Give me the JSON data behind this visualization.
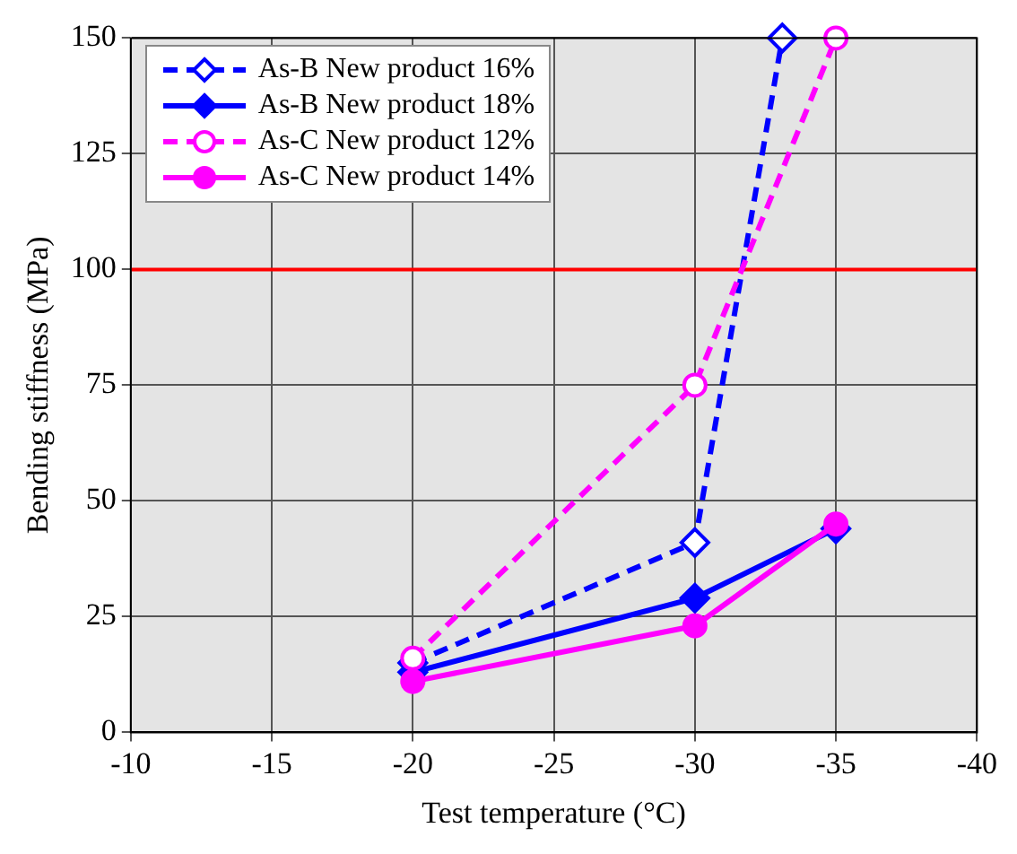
{
  "chart_data": {
    "type": "line",
    "xlabel": "Test temperature (°C)",
    "ylabel": "Bending stiffness (MPa)",
    "xlim": [
      -10,
      -40
    ],
    "xticks": [
      -10,
      -15,
      -20,
      -25,
      -30,
      -35,
      -40
    ],
    "ylim": [
      0,
      150
    ],
    "yticks": [
      0,
      25,
      50,
      75,
      100,
      125,
      150
    ],
    "grid": true,
    "legend": "top left",
    "ref_lines": [
      {
        "axis": "y",
        "value": 100,
        "color": "#ff0000"
      }
    ],
    "series": [
      {
        "name": "As-B New product 16%",
        "color": "#0000ff",
        "x": [
          -20,
          -30,
          -33.1
        ],
        "values": [
          15,
          41,
          150
        ],
        "marker": "diamond",
        "line_style": "dashed"
      },
      {
        "name": "As-B New product 18%",
        "color": "#0000ff",
        "x": [
          -20,
          -30,
          -35
        ],
        "values": [
          13,
          29,
          44
        ],
        "marker": "diamond",
        "line_style": "solid"
      },
      {
        "name": "As-C New product 12%",
        "color": "#ff00ff",
        "x": [
          -20,
          -30,
          -35
        ],
        "values": [
          16,
          75,
          150
        ],
        "marker": "circle",
        "line_style": "dashed"
      },
      {
        "name": "As-C New product 14%",
        "color": "#ff00ff",
        "x": [
          -20,
          -30,
          -35
        ],
        "values": [
          11,
          23,
          45
        ],
        "marker": "circle",
        "line_style": "solid"
      }
    ]
  }
}
